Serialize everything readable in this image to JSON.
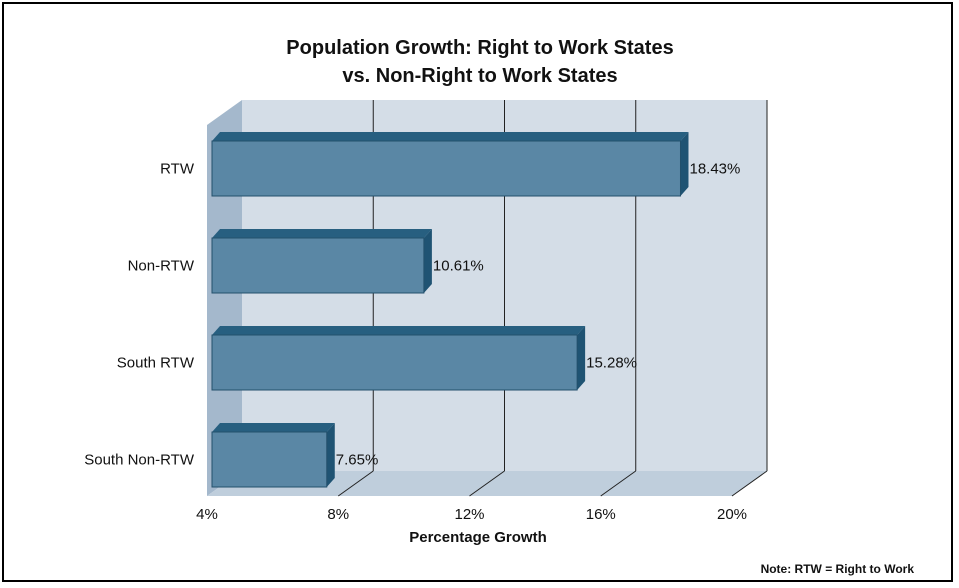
{
  "chart_data": {
    "type": "bar",
    "orientation": "horizontal",
    "title_lines": [
      "Population Growth: Right to Work States",
      "vs. Non-Right to Work States"
    ],
    "categories": [
      "RTW",
      "Non-RTW",
      "South RTW",
      "South Non-RTW"
    ],
    "values": [
      18.43,
      10.61,
      15.28,
      7.65
    ],
    "data_labels": [
      "18.43%",
      "10.61%",
      "15.28%",
      "7.65%"
    ],
    "xlabel": "Percentage Growth",
    "xlim": [
      4,
      20
    ],
    "xticks": [
      4,
      8,
      12,
      16,
      20
    ],
    "xtick_labels": [
      "4%",
      "8%",
      "12%",
      "16%",
      "20%"
    ],
    "grid": true,
    "note": "Note: RTW = Right to Work",
    "colors": {
      "bar_front": "#5a87a5",
      "bar_top": "#275f80",
      "bar_side": "#1f5373",
      "wall": "#d4dde7",
      "left_wall": "#a4b8cc",
      "floor": "#bfcedc"
    }
  }
}
